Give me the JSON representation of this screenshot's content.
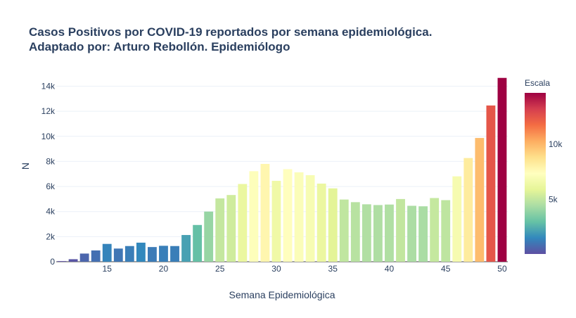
{
  "chart_data": {
    "type": "bar",
    "title": "Casos Positivos por COVID-19 reportados por semana epidemiológica.",
    "subtitle": "Adaptado por: Arturo Rebollón. Epidemiólogo",
    "xlabel": "Semana Epidemiológica",
    "ylabel": "N",
    "x": [
      11,
      12,
      13,
      14,
      15,
      16,
      17,
      18,
      19,
      20,
      21,
      22,
      23,
      24,
      25,
      26,
      27,
      28,
      29,
      30,
      31,
      32,
      33,
      34,
      35,
      36,
      37,
      38,
      39,
      40,
      41,
      42,
      43,
      44,
      45,
      46,
      47,
      48,
      49,
      50
    ],
    "values": [
      50,
      200,
      650,
      900,
      1420,
      1050,
      1250,
      1520,
      1170,
      1270,
      1250,
      2130,
      2930,
      4000,
      5050,
      5320,
      6200,
      7220,
      7800,
      6450,
      7380,
      7130,
      6900,
      6230,
      5850,
      4960,
      4750,
      4580,
      4520,
      4560,
      5000,
      4460,
      4420,
      5080,
      4910,
      6810,
      8270,
      9870,
      12460,
      14660
    ],
    "xlim": [
      10.5,
      50.5
    ],
    "ylim": [
      0,
      15430
    ],
    "xticks": [
      15,
      20,
      25,
      30,
      35,
      40,
      45,
      50
    ],
    "yticks": [
      0,
      2000,
      4000,
      6000,
      8000,
      10000,
      12000,
      14000
    ],
    "yticklabels": [
      "0",
      "2k",
      "4k",
      "6k",
      "8k",
      "10k",
      "12k",
      "14k"
    ],
    "grid": true,
    "colorbar": {
      "title": "Escala",
      "range": [
        50,
        14660
      ],
      "ticks": [
        5000,
        10000
      ],
      "ticklabels": [
        "5k",
        "10k"
      ],
      "colorscale": [
        "#5e4fa2",
        "#3288bd",
        "#66c2a5",
        "#abdda4",
        "#e6f598",
        "#ffffbf",
        "#fee08b",
        "#fdae61",
        "#f46d43",
        "#d53e4f",
        "#9e0142"
      ]
    }
  }
}
